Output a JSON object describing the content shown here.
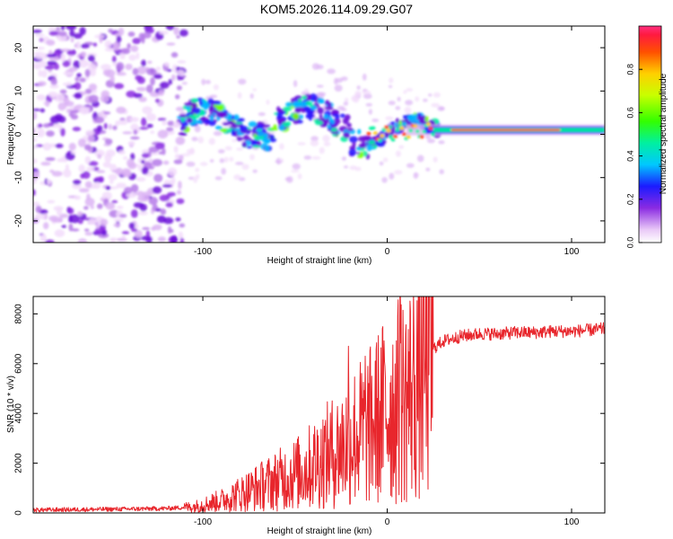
{
  "title": "KOM5.2026.114.09.29.G07",
  "chart_data": [
    {
      "type": "heatmap",
      "title": "KOM5.2026.114.09.29.G07",
      "xlabel": "Height of straight line (km)",
      "ylabel": "Frequency (Hz)",
      "xlim": [
        -192,
        118
      ],
      "ylim": [
        -25,
        25
      ],
      "xticks": [
        -100,
        0,
        100
      ],
      "yticks": [
        -20,
        -10,
        0,
        10,
        20
      ],
      "colorbar": {
        "label": "Normalized spectral amplitude",
        "range": [
          0,
          1
        ],
        "ticks": [
          0.0,
          0.2,
          0.4,
          0.6,
          0.8
        ]
      },
      "features": {
        "noise_region_x": [
          -192,
          -110
        ],
        "ridge_x": [
          -110,
          -5,
          25,
          118
        ],
        "ridge_y_hz": [
          3,
          0,
          1,
          1
        ],
        "steady_line_hz": 1,
        "steady_line_start_km": 25
      }
    },
    {
      "type": "line",
      "xlabel": "Height of straight line (km)",
      "ylabel": "SNR (10 * v/v)",
      "xlim": [
        -192,
        118
      ],
      "ylim": [
        0,
        8700
      ],
      "xticks": [
        -100,
        0,
        100
      ],
      "yticks": [
        0,
        2000,
        4000,
        6000,
        8000
      ],
      "series": [
        {
          "name": "SNR",
          "color": "#e8262c",
          "x": [
            -192,
            -150,
            -120,
            -105,
            -90,
            -75,
            -60,
            -45,
            -35,
            -25,
            -20,
            -15,
            -10,
            -5,
            0,
            5,
            8,
            12,
            18,
            25,
            30,
            40,
            50,
            60,
            70,
            80,
            90,
            100,
            110,
            118
          ],
          "y": [
            120,
            150,
            180,
            250,
            500,
            900,
            1300,
            1700,
            2200,
            2600,
            3000,
            3200,
            3400,
            3800,
            4200,
            4400,
            4600,
            4800,
            5600,
            6600,
            6900,
            7100,
            7200,
            7200,
            7250,
            7250,
            7300,
            7300,
            7350,
            7400
          ]
        }
      ],
      "spikes": [
        {
          "x": -21,
          "y": 6700
        },
        {
          "x": -12,
          "y": 6300
        },
        {
          "x": 7,
          "y": 8700
        },
        {
          "x": 14,
          "y": 6300
        }
      ]
    }
  ],
  "colors": {
    "line": "#e8262c",
    "axis": "#000000"
  }
}
